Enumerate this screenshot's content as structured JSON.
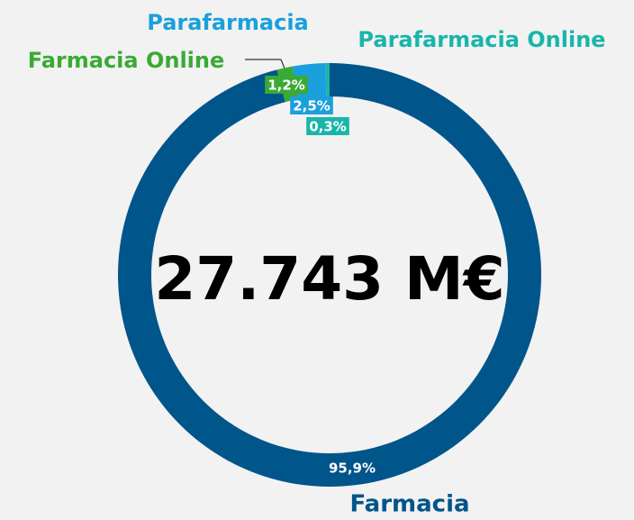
{
  "chart_data": {
    "type": "donut",
    "center_label": "27.743 M€",
    "categories": [
      "Farmacia",
      "Farmacia Online",
      "Parafarmacia",
      "Parafarmacia Online"
    ],
    "values": [
      95.9,
      1.2,
      2.5,
      0.3
    ],
    "value_labels": [
      "95,9%",
      "1,2%",
      "2,5%",
      "0,3%"
    ],
    "colors": [
      "#00558a",
      "#3aaa35",
      "#1aa0dc",
      "#19b5aa"
    ]
  }
}
